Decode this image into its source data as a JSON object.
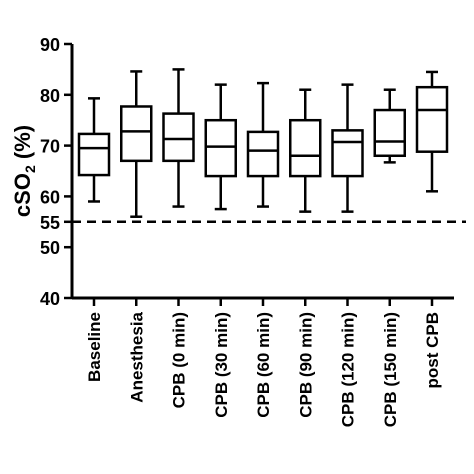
{
  "chart_data": {
    "type": "box",
    "title": "",
    "xlabel": "",
    "ylabel": "cSO",
    "ylabel_sub": "2",
    "ylabel_unit": " (%)",
    "ylim": [
      40,
      90
    ],
    "yticks": [
      40,
      50,
      55,
      60,
      70,
      80,
      90
    ],
    "reference_line": {
      "y": 55,
      "style": "dashed"
    },
    "grid": false,
    "categories": [
      "Baseline",
      "Anesthesia",
      "CPB (0 min)",
      "CPB (30 min)",
      "CPB (60 min)",
      "CPB (90 min)",
      "CPB (120 min)",
      "CPB (150 min)",
      "post CPB"
    ],
    "boxes": [
      {
        "min": 59,
        "q1": 64.2,
        "median": 69.5,
        "q3": 72.3,
        "max": 79.3
      },
      {
        "min": 56,
        "q1": 67.0,
        "median": 72.8,
        "q3": 77.7,
        "max": 84.6
      },
      {
        "min": 58,
        "q1": 67.0,
        "median": 71.3,
        "q3": 76.3,
        "max": 85.0
      },
      {
        "min": 57.5,
        "q1": 64.0,
        "median": 69.8,
        "q3": 75.0,
        "max": 82.0
      },
      {
        "min": 58,
        "q1": 64.0,
        "median": 69.0,
        "q3": 72.7,
        "max": 82.3
      },
      {
        "min": 57,
        "q1": 64.0,
        "median": 68.0,
        "q3": 75.0,
        "max": 81.0
      },
      {
        "min": 57,
        "q1": 64.0,
        "median": 70.7,
        "q3": 73.0,
        "max": 82.0
      },
      {
        "min": 66.7,
        "q1": 68.0,
        "median": 70.8,
        "q3": 77.0,
        "max": 81.0
      },
      {
        "min": 61,
        "q1": 68.8,
        "median": 77.0,
        "q3": 81.5,
        "max": 84.5
      }
    ]
  }
}
